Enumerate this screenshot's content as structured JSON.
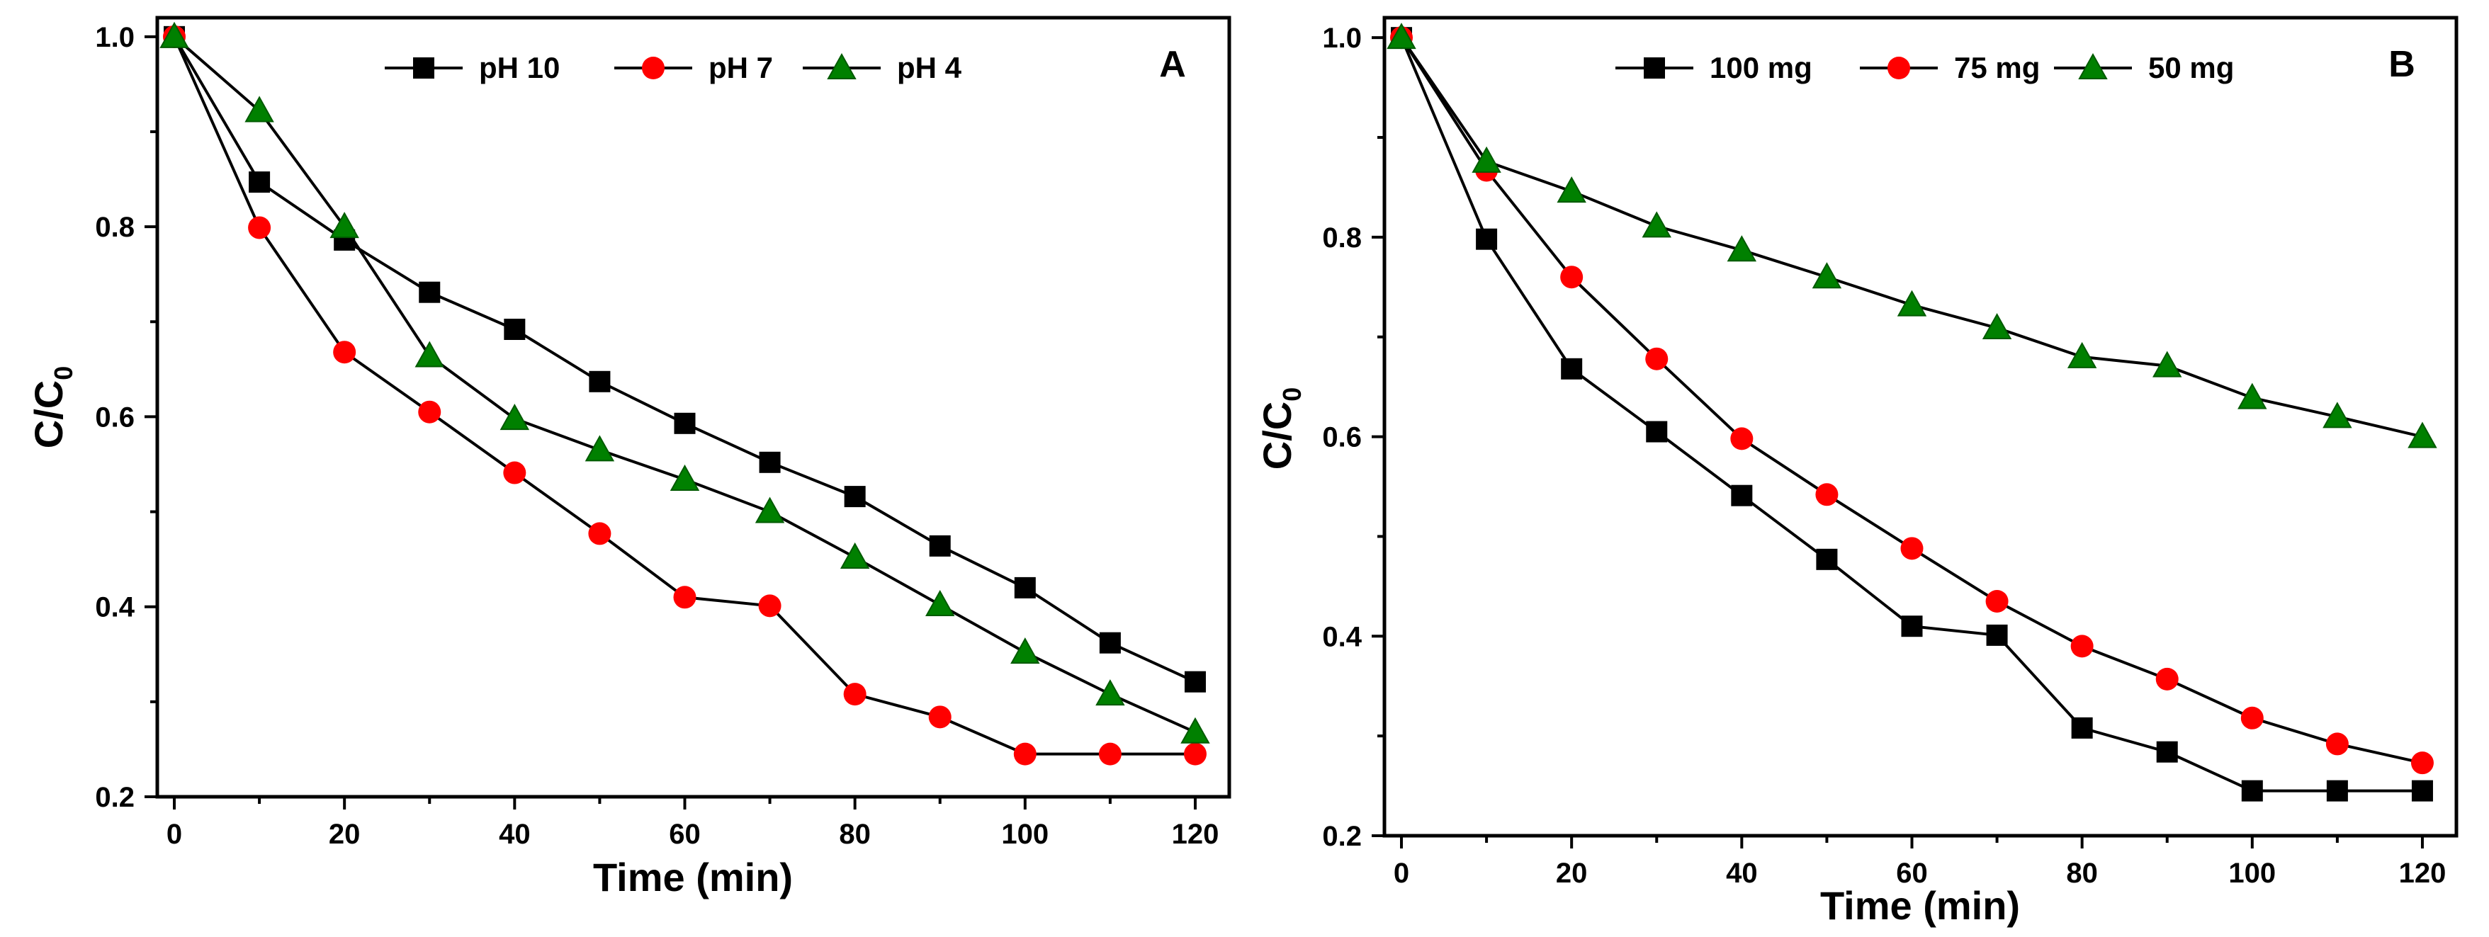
{
  "chart_data": [
    {
      "type": "line",
      "panel_label": "A",
      "title": "",
      "xlabel": "Time (min)",
      "ylabel_main": "C/C",
      "ylabel_sub": "0",
      "xlim": [
        -2,
        124
      ],
      "ylim": [
        0.2,
        1.02
      ],
      "xticks": [
        0,
        20,
        40,
        60,
        80,
        100,
        120
      ],
      "xtick_labels": [
        "0",
        "20",
        "40",
        "60",
        "80",
        "100",
        "120"
      ],
      "yticks": [
        0.2,
        0.4,
        0.6,
        0.8,
        1.0
      ],
      "ytick_labels": [
        "0.2",
        "0.4",
        "0.6",
        "0.8",
        "1.0"
      ],
      "x": [
        0,
        10,
        20,
        30,
        40,
        50,
        60,
        70,
        80,
        90,
        100,
        110,
        120
      ],
      "legend_position": "top-center",
      "grid": false,
      "series": [
        {
          "name": "pH 10",
          "marker": "square",
          "color": "#000000",
          "values": [
            1.0,
            0.847,
            0.786,
            0.731,
            0.692,
            0.637,
            0.593,
            0.552,
            0.516,
            0.464,
            0.42,
            0.362,
            0.321
          ]
        },
        {
          "name": "pH 7",
          "marker": "circle",
          "color": "#ff0000",
          "values": [
            1.0,
            0.799,
            0.668,
            0.605,
            0.541,
            0.477,
            0.41,
            0.401,
            0.308,
            0.284,
            0.245,
            0.245,
            0.245
          ]
        },
        {
          "name": "pH 4",
          "marker": "triangle",
          "color": "#008000",
          "values": [
            1.0,
            0.922,
            0.8,
            0.664,
            0.598,
            0.565,
            0.534,
            0.5,
            0.452,
            0.402,
            0.352,
            0.308,
            0.268
          ]
        }
      ]
    },
    {
      "type": "line",
      "panel_label": "B",
      "title": "",
      "xlabel": "Time (min)",
      "ylabel_main": "C/C",
      "ylabel_sub": "0",
      "xlim": [
        -2,
        124
      ],
      "ylim": [
        0.2,
        1.02
      ],
      "xticks": [
        0,
        20,
        40,
        60,
        80,
        100,
        120
      ],
      "xtick_labels": [
        "0",
        "20",
        "40",
        "60",
        "80",
        "100",
        "120"
      ],
      "yticks": [
        0.2,
        0.4,
        0.6,
        0.8,
        1.0
      ],
      "ytick_labels": [
        "0.2",
        "0.4",
        "0.6",
        "0.8",
        "1.0"
      ],
      "x": [
        0,
        10,
        20,
        30,
        40,
        50,
        60,
        70,
        80,
        90,
        100,
        110,
        120
      ],
      "legend_position": "top-center",
      "grid": false,
      "series": [
        {
          "name": "100 mg",
          "marker": "square",
          "color": "#000000",
          "values": [
            1.0,
            0.798,
            0.668,
            0.605,
            0.541,
            0.477,
            0.41,
            0.401,
            0.308,
            0.284,
            0.245,
            0.245,
            0.245
          ]
        },
        {
          "name": "75 mg",
          "marker": "circle",
          "color": "#ff0000",
          "values": [
            1.0,
            0.867,
            0.76,
            0.678,
            0.598,
            0.542,
            0.488,
            0.435,
            0.39,
            0.357,
            0.318,
            0.292,
            0.273
          ]
        },
        {
          "name": "50 mg",
          "marker": "triangle",
          "color": "#008000",
          "values": [
            1.0,
            0.876,
            0.846,
            0.811,
            0.787,
            0.76,
            0.732,
            0.709,
            0.68,
            0.671,
            0.639,
            0.62,
            0.6
          ]
        }
      ]
    }
  ]
}
